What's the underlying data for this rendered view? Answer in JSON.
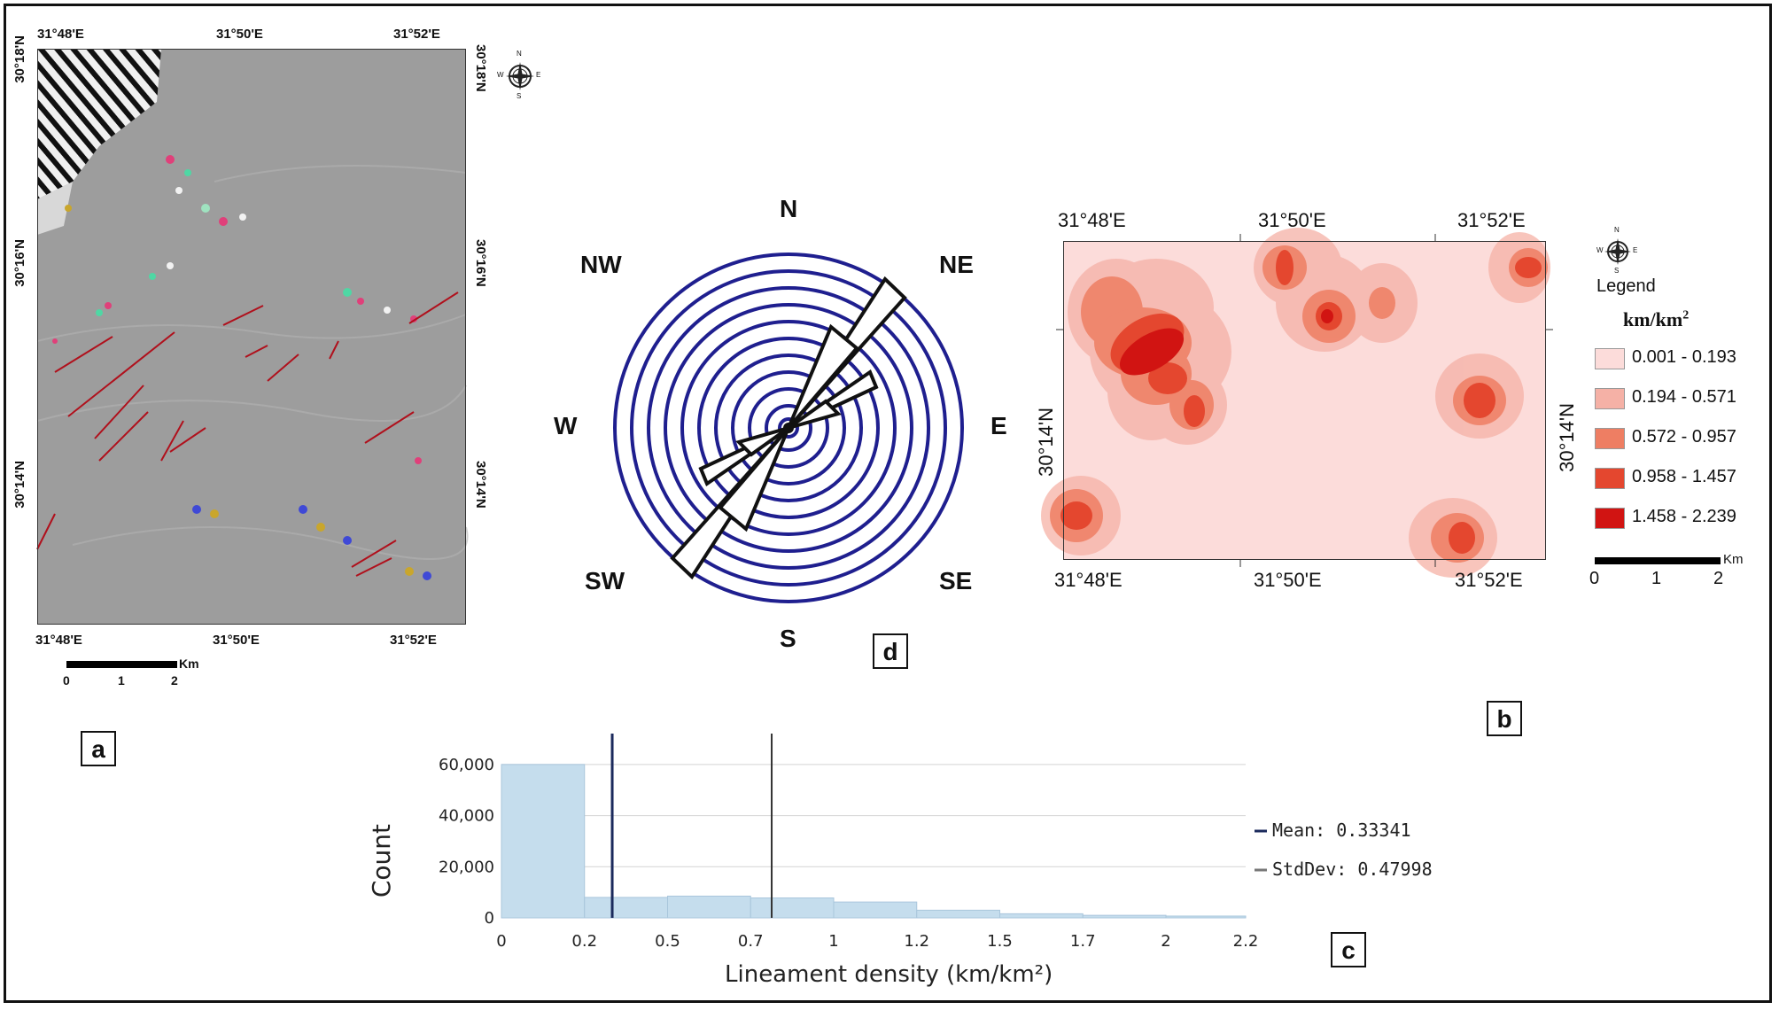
{
  "panel_a": {
    "label": "a",
    "top_coords": [
      "31°48'E",
      "31°50'E",
      "31°52'E"
    ],
    "bottom_coords": [
      "31°48'E",
      "31°50'E",
      "31°52'E"
    ],
    "left_coords": [
      "30°18'N",
      "30°16'N",
      "30°14'N"
    ],
    "right_coords": [
      "30°18'N",
      "30°16'N",
      "30°14'N"
    ],
    "scale_unit": "Km",
    "scale_ticks": [
      "0",
      "1",
      "2"
    ],
    "compass": {
      "n": "N",
      "s": "S",
      "e": "E",
      "w": "W"
    }
  },
  "panel_d": {
    "label": "d",
    "directions": {
      "n": "N",
      "ne": "NE",
      "e": "E",
      "se": "SE",
      "s": "S",
      "sw": "SW",
      "w": "W",
      "nw": "NW"
    },
    "ring_color": "#1f1f8f"
  },
  "panel_b": {
    "label": "b",
    "top_coords": [
      "31°48'E",
      "31°50'E",
      "31°52'E"
    ],
    "bottom_coords": [
      "31°48'E",
      "31°50'E",
      "31°52'E"
    ],
    "left_coord": "30°14'N",
    "right_coord": "30°14'N",
    "legend_title": "Legend",
    "legend_unit": "km/km",
    "legend_unit_sup": "2",
    "legend_items": [
      {
        "label": "0.001 - 0.193",
        "color": "#fcdcda"
      },
      {
        "label": "0.194 - 0.571",
        "color": "#f5b1a6"
      },
      {
        "label": "0.572 - 0.957",
        "color": "#ee7e63"
      },
      {
        "label": "0.958 - 1.457",
        "color": "#e4472f"
      },
      {
        "label": "1.458 - 2.239",
        "color": "#d11412"
      }
    ],
    "scale_unit": "Km",
    "scale_ticks": [
      "0",
      "1",
      "2"
    ],
    "compass": {
      "n": "N",
      "s": "S",
      "e": "E",
      "w": "W"
    }
  },
  "panel_c": {
    "label": "c",
    "chart_data": {
      "type": "bar",
      "title": "",
      "xlabel": "Lineament density (km/km²)",
      "ylabel": "Count",
      "x_tick_labels": [
        "0",
        "0.2",
        "0.5",
        "0.7",
        "1",
        "1.2",
        "1.5",
        "1.7",
        "2",
        "2.2"
      ],
      "y_tick_labels": [
        "0",
        "20,000",
        "40,000",
        "60,000"
      ],
      "xlim": [
        0,
        2.24
      ],
      "ylim": [
        0,
        70000
      ],
      "bins": [
        {
          "x0": 0.0,
          "x1": 0.25,
          "count": 60000
        },
        {
          "x0": 0.25,
          "x1": 0.5,
          "count": 8000
        },
        {
          "x0": 0.5,
          "x1": 0.75,
          "count": 8500
        },
        {
          "x0": 0.75,
          "x1": 1.0,
          "count": 7800
        },
        {
          "x0": 1.0,
          "x1": 1.25,
          "count": 6200
        },
        {
          "x0": 1.25,
          "x1": 1.5,
          "count": 3000
        },
        {
          "x0": 1.5,
          "x1": 1.75,
          "count": 1600
        },
        {
          "x0": 1.75,
          "x1": 2.0,
          "count": 1000
        },
        {
          "x0": 2.0,
          "x1": 2.24,
          "count": 700
        }
      ],
      "mean": 0.33341,
      "mean_plus_std": 0.81339,
      "legend": [
        {
          "label": "Mean: 0.33341",
          "color": "#1b2a5c"
        },
        {
          "label": "StdDev: 0.47998",
          "color": "#777777"
        }
      ],
      "bar_color": "#c5dded",
      "grid": true
    }
  }
}
